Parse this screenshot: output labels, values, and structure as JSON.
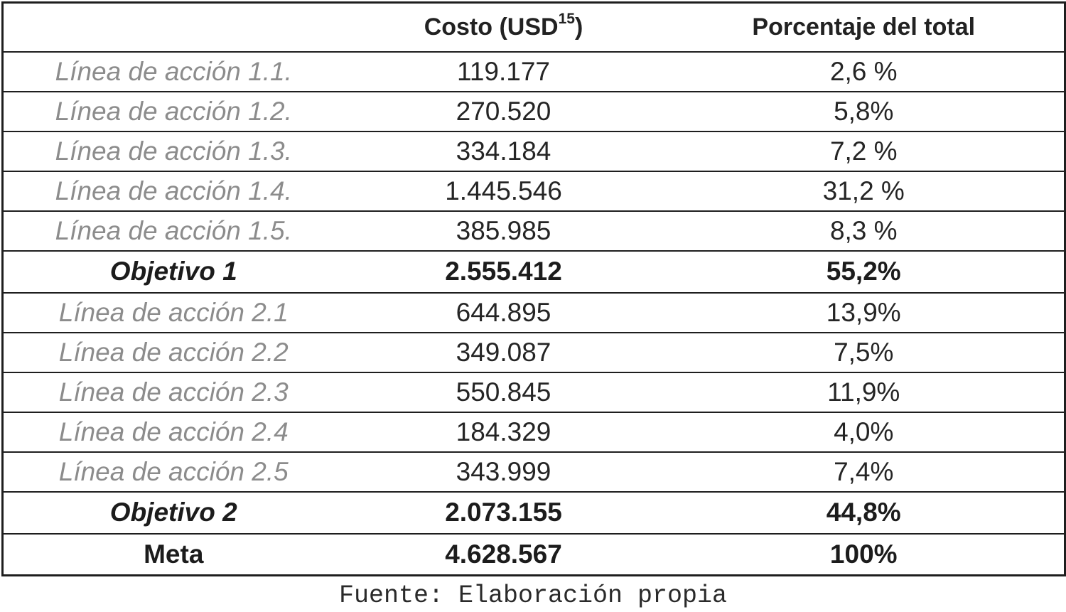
{
  "table": {
    "headers": {
      "label": "",
      "cost": "Costo (USD",
      "cost_footnote": "15",
      "cost_close": ")",
      "percent": "Porcentaje del total"
    },
    "rows": [
      {
        "label": "Línea de acción 1.1.",
        "cost": "119.177",
        "percent": "2,6 %",
        "kind": "line"
      },
      {
        "label": "Línea de acción 1.2.",
        "cost": "270.520",
        "percent": "5,8%",
        "kind": "line"
      },
      {
        "label": "Línea de acción 1.3.",
        "cost": "334.184",
        "percent": "7,2 %",
        "kind": "line"
      },
      {
        "label": "Línea de acción 1.4.",
        "cost": "1.445.546",
        "percent": "31,2 %",
        "kind": "line"
      },
      {
        "label": "Línea de acción 1.5.",
        "cost": "385.985",
        "percent": "8,3 %",
        "kind": "line"
      },
      {
        "label": "Objetivo 1",
        "cost": "2.555.412",
        "percent": "55,2%",
        "kind": "obj"
      },
      {
        "label": "Línea de acción 2.1",
        "cost": "644.895",
        "percent": "13,9%",
        "kind": "line"
      },
      {
        "label": "Línea de acción 2.2",
        "cost": "349.087",
        "percent": "7,5%",
        "kind": "line"
      },
      {
        "label": "Línea de acción 2.3",
        "cost": "550.845",
        "percent": "11,9%",
        "kind": "line"
      },
      {
        "label": "Línea de acción 2.4",
        "cost": "184.329",
        "percent": "4,0%",
        "kind": "line"
      },
      {
        "label": "Línea de acción 2.5",
        "cost": "343.999",
        "percent": "7,4%",
        "kind": "line"
      },
      {
        "label": "Objetivo 2",
        "cost": "2.073.155",
        "percent": "44,8%",
        "kind": "obj"
      },
      {
        "label": "Meta",
        "cost": "4.628.567",
        "percent": "100%",
        "kind": "meta"
      }
    ]
  },
  "source": "Fuente: Elaboración propia"
}
